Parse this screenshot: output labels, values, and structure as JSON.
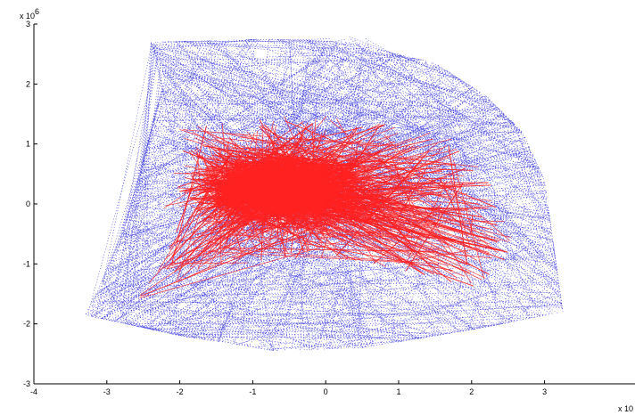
{
  "chart_data": {
    "type": "scatter",
    "title": "",
    "xlabel": "",
    "ylabel": "",
    "xlim": [
      -4,
      4
    ],
    "ylim": [
      -3000000,
      3000000
    ],
    "grid": false,
    "x_ticks": [
      -4,
      -3,
      -2,
      -1,
      0,
      1,
      2,
      3
    ],
    "y_ticks": [
      -3,
      -2,
      -1,
      0,
      1,
      2,
      3
    ],
    "x_exponent_label": "x 10",
    "y_exponent_label": "x 10",
    "y_exponent": "6",
    "series": [
      {
        "color": "#3a3ae0",
        "style": "dotted-lines",
        "boundary_polygon": [
          [
            -2.4,
            2.7
          ],
          [
            -0.8,
            2.75
          ],
          [
            0.3,
            2.7
          ],
          [
            1.5,
            2.35
          ],
          [
            2.2,
            1.8
          ],
          [
            2.7,
            1.2
          ],
          [
            3.0,
            0.4
          ],
          [
            3.1,
            -0.5
          ],
          [
            3.25,
            -1.8
          ],
          [
            2.0,
            -2.1
          ],
          [
            0.5,
            -2.4
          ],
          [
            -0.7,
            -2.45
          ],
          [
            -2.0,
            -2.2
          ],
          [
            -3.3,
            -1.85
          ],
          [
            -2.9,
            -0.9
          ],
          [
            -2.6,
            0.2
          ],
          [
            -2.4,
            1.2
          ],
          [
            -2.2,
            2.1
          ]
        ],
        "hub_points": [
          [
            -0.8,
            0.25
          ],
          [
            -0.3,
            0.3
          ],
          [
            0.2,
            0.1
          ],
          [
            -1.0,
            -0.2
          ],
          [
            0.6,
            1.4
          ],
          [
            1.5,
            1.15
          ],
          [
            0.3,
            2.55
          ],
          [
            -0.2,
            1.3
          ],
          [
            -2.7,
            -1.6
          ]
        ]
      },
      {
        "color": "#ff2020",
        "style": "dense-lines",
        "boundary_polygon": [
          [
            -2.1,
            1.35
          ],
          [
            -1.2,
            1.35
          ],
          [
            -0.5,
            1.5
          ],
          [
            0.4,
            1.45
          ],
          [
            1.2,
            1.3
          ],
          [
            1.7,
            1.15
          ],
          [
            2.2,
            0.5
          ],
          [
            2.7,
            -0.7
          ],
          [
            2.5,
            -1.0
          ],
          [
            2.0,
            -1.4
          ],
          [
            1.0,
            -1.1
          ],
          [
            0.2,
            -0.9
          ],
          [
            -1.0,
            -1.0
          ],
          [
            -2.2,
            -1.4
          ],
          [
            -2.7,
            -1.7
          ],
          [
            -2.1,
            -0.5
          ],
          [
            -1.8,
            0.4
          ],
          [
            -2.0,
            1.0
          ]
        ],
        "core_center": [
          -0.6,
          0.25
        ]
      }
    ]
  }
}
